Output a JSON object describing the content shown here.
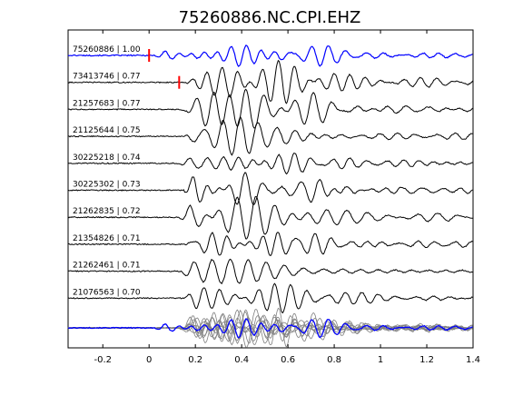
{
  "chart_data": {
    "type": "line",
    "title": "75260886.NC.CPI.EHZ",
    "xlabel": "",
    "ylabel": "",
    "xlim": [
      -0.35,
      1.4
    ],
    "xticks": [
      -0.2,
      0,
      0.2,
      0.4,
      0.6,
      0.8,
      1,
      1.2,
      1.4
    ],
    "xtick_labels": [
      "-0.2",
      "0",
      "0.2",
      "0.4",
      "0.6",
      "0.8",
      "1",
      "1.2",
      "1.4"
    ],
    "grid": false,
    "colors": {
      "reference": "#0000ff",
      "trace": "#000000",
      "stack": "#808080",
      "pick": "#ff0000",
      "axes": "#000000"
    },
    "series": [
      {
        "label": "75260886 | 1.00",
        "pick": 0.0
      },
      {
        "label": "73413746 | 0.77",
        "pick": 0.13
      },
      {
        "label": "21257683 | 0.77"
      },
      {
        "label": "21125644 | 0.75"
      },
      {
        "label": "30225218 | 0.74"
      },
      {
        "label": "30225302 | 0.73"
      },
      {
        "label": "21262835 | 0.72"
      },
      {
        "label": "21354826 | 0.71"
      },
      {
        "label": "21262461 | 0.71"
      },
      {
        "label": "21076563 | 0.70"
      }
    ]
  }
}
